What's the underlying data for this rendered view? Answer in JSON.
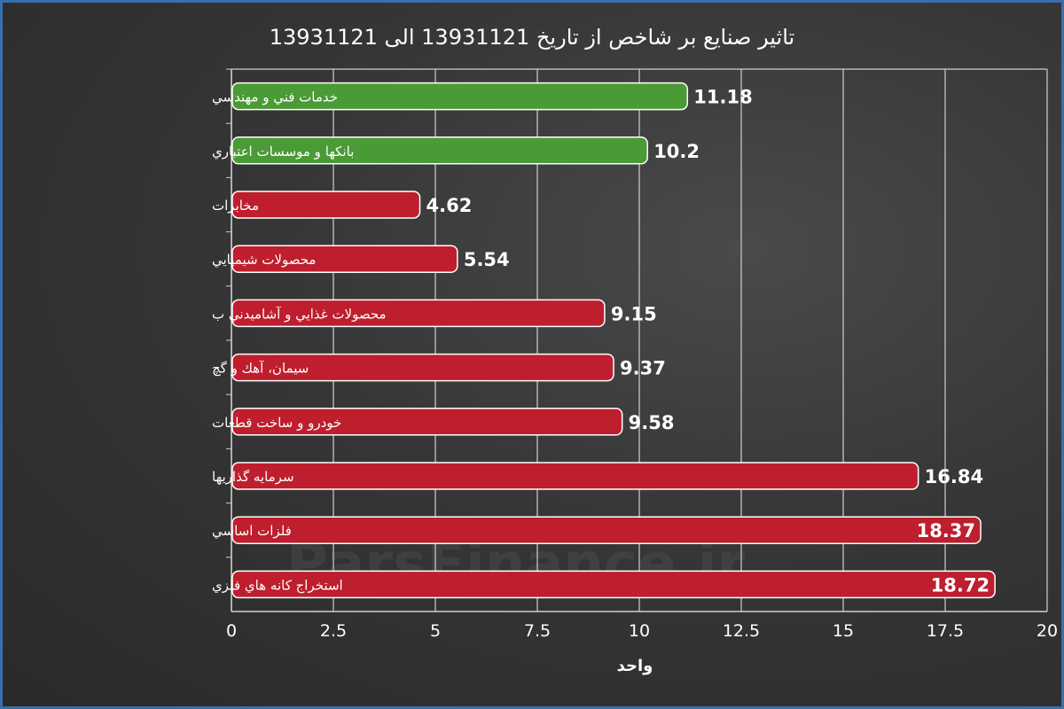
{
  "chart_data": {
    "type": "bar",
    "orientation": "horizontal",
    "title": "تاثیر صنایع بر شاخص از تاریخ 13931121 الی 13931121",
    "xlabel": "واحد",
    "ylabel": "",
    "xlim": [
      0,
      20
    ],
    "xticks": [
      "0",
      "2.5",
      "5",
      "7.5",
      "10",
      "12.5",
      "15",
      "17.5",
      "20"
    ],
    "grid": true,
    "categories": [
      "خدمات فني و مهندسي",
      "بانكها و موسسات اعتباري",
      "مخابرات",
      "محصولات شيميايي",
      "محصولات غذايي و آشاميدني ب",
      "سيمان، آهك و گچ",
      "خودرو و ساخت قطعات",
      "سرمايه گذاريها",
      "فلزات اساسي",
      "استخراج كانه هاي فلزي"
    ],
    "values": [
      11.18,
      10.2,
      4.62,
      5.54,
      9.15,
      9.37,
      9.58,
      16.84,
      18.37,
      18.72
    ],
    "value_labels": [
      "11.18",
      "10.2",
      "4.62",
      "5.54",
      "9.15",
      "9.37",
      "9.58",
      "16.84",
      "18.37",
      "18.72"
    ],
    "bar_colors": [
      "#4a9a35",
      "#4a9a35",
      "#be1e2d",
      "#be1e2d",
      "#be1e2d",
      "#be1e2d",
      "#be1e2d",
      "#be1e2d",
      "#be1e2d",
      "#be1e2d"
    ],
    "watermark": "ParsFinance.ir"
  },
  "colors": {
    "positive": "#4a9a35",
    "negative": "#be1e2d",
    "frame": "#3a6fa8",
    "grid": "#cfcfcf"
  }
}
